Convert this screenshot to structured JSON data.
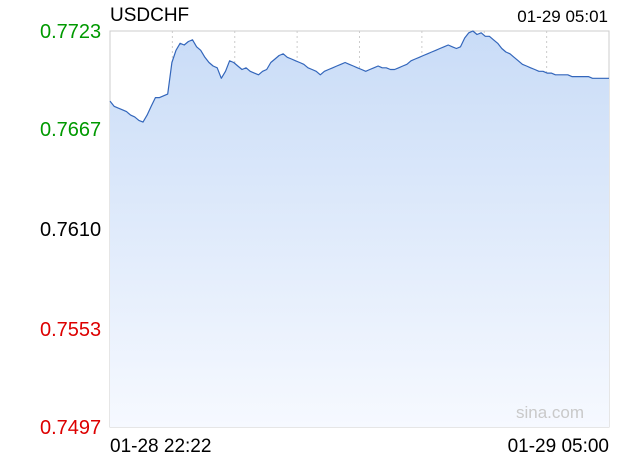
{
  "header": {
    "symbol": "USDCHF",
    "timestamp": "01-29 05:01"
  },
  "watermark": "sina.com",
  "colors": {
    "up": "#009900",
    "down": "#dd0000",
    "neutral": "#000000",
    "line": "#3366bb",
    "fill_top": "#c9dcf7",
    "fill_bottom": "#f6f9ff",
    "grid": "#cccccc"
  },
  "chart_data": {
    "type": "area",
    "title": "USDCHF",
    "xlabel": "",
    "ylabel": "",
    "reference_price": 0.761,
    "ylim": [
      0.7497,
      0.7723
    ],
    "y_ticks": [
      {
        "value": 0.7723,
        "label": "0.7723",
        "tone": "up"
      },
      {
        "value": 0.7667,
        "label": "0.7667",
        "tone": "up"
      },
      {
        "value": 0.761,
        "label": "0.7610",
        "tone": "neutral"
      },
      {
        "value": 0.7553,
        "label": "0.7553",
        "tone": "down"
      },
      {
        "value": 0.7497,
        "label": "0.7497",
        "tone": "down"
      }
    ],
    "x_range": [
      "01-28 22:22",
      "01-29 05:01"
    ],
    "x_ticks": [
      {
        "label": "01-28 22:22",
        "anchor": "start"
      },
      {
        "label": "01-29 05:00",
        "anchor": "end"
      }
    ],
    "grid": true,
    "series": [
      {
        "values": [
          0.7683,
          0.768,
          0.7679,
          0.7678,
          0.7677,
          0.7675,
          0.7674,
          0.7672,
          0.7671,
          0.7675,
          0.768,
          0.7685,
          0.7685,
          0.7686,
          0.7687,
          0.7705,
          0.7712,
          0.7716,
          0.7715,
          0.7717,
          0.7718,
          0.7714,
          0.7712,
          0.7708,
          0.7705,
          0.7703,
          0.7702,
          0.7696,
          0.77,
          0.7706,
          0.7705,
          0.7703,
          0.7701,
          0.7702,
          0.77,
          0.7699,
          0.7698,
          0.77,
          0.7701,
          0.7705,
          0.7707,
          0.7709,
          0.771,
          0.7708,
          0.7707,
          0.7706,
          0.7705,
          0.7704,
          0.7702,
          0.7701,
          0.77,
          0.7698,
          0.77,
          0.7701,
          0.7702,
          0.7703,
          0.7704,
          0.7705,
          0.7704,
          0.7703,
          0.7702,
          0.7701,
          0.77,
          0.7701,
          0.7702,
          0.7703,
          0.7702,
          0.7702,
          0.7701,
          0.7701,
          0.7702,
          0.7703,
          0.7704,
          0.7706,
          0.7707,
          0.7708,
          0.7709,
          0.771,
          0.7711,
          0.7712,
          0.7713,
          0.7714,
          0.7715,
          0.7714,
          0.7713,
          0.7714,
          0.7719,
          0.7722,
          0.7723,
          0.7721,
          0.7722,
          0.772,
          0.772,
          0.7718,
          0.7716,
          0.7713,
          0.7711,
          0.771,
          0.7708,
          0.7706,
          0.7704,
          0.7703,
          0.7702,
          0.7701,
          0.77,
          0.77,
          0.7699,
          0.7699,
          0.7698,
          0.7698,
          0.7698,
          0.7698,
          0.7697,
          0.7697,
          0.7697,
          0.7697,
          0.7697,
          0.7696,
          0.7696,
          0.7696,
          0.7696,
          0.7696
        ]
      }
    ]
  }
}
